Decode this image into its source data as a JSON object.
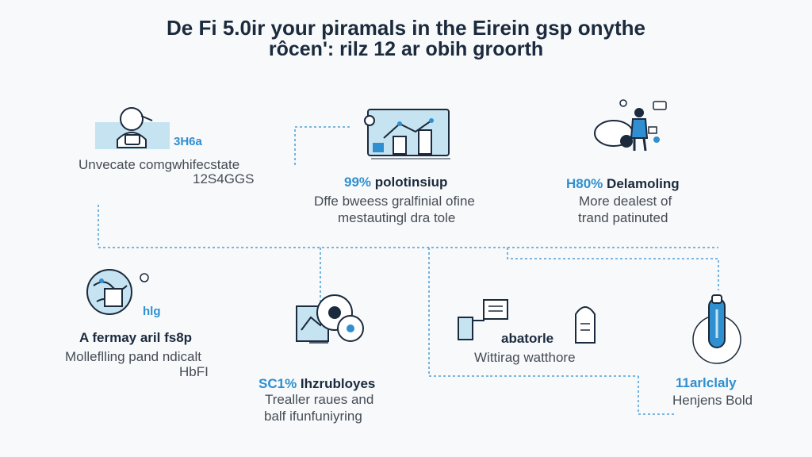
{
  "title": {
    "line1": "De Fi 5.0ir your piramals in the Eirein gsp onythe",
    "line2": "rôcen': rilz 12 ar obih groorth"
  },
  "colors": {
    "accent": "#2f8fd0",
    "accent_light": "#c6e3f1",
    "line": "#2f8fd0",
    "navy": "#1b2a3c"
  },
  "nodes": [
    {
      "id": "top-left",
      "icon": "person-laptop-icon",
      "badge": "3H6a",
      "line1": "Unvecate comgwhifecstate",
      "line2": "12S4GGS"
    },
    {
      "id": "top-middle",
      "icon": "dashboard-chart-icon",
      "badge": "99%",
      "heading": "polotinsiup",
      "line1": "Dffe bweess gralfinial ofine",
      "line2": "mestautingl dra tole"
    },
    {
      "id": "top-right",
      "icon": "team-working-icon",
      "badge": "H80%",
      "heading": "Delamoling",
      "line1": "More dealest of",
      "line2": "trand patinuted"
    },
    {
      "id": "bottom-left",
      "icon": "globe-map-icon",
      "badge": "hlg",
      "heading": "A fermay aril fs8p",
      "line1": "Molleflling pand ndicalt",
      "line2": "HbFI"
    },
    {
      "id": "bottom-middle-left",
      "icon": "analytics-gears-icon",
      "badge": "SC1%",
      "heading": "Ihzrubloyes",
      "line1": "Trealler raues and",
      "line2": "balf ifunfuniyring"
    },
    {
      "id": "bottom-middle-right",
      "icon": "document-scan-icon",
      "heading": "abatorle",
      "line1": "Wittirag watthore"
    },
    {
      "id": "bottom-right",
      "icon": "thermometer-icon",
      "heading": "11arlclaly",
      "line1": "Henjens Bold"
    }
  ]
}
